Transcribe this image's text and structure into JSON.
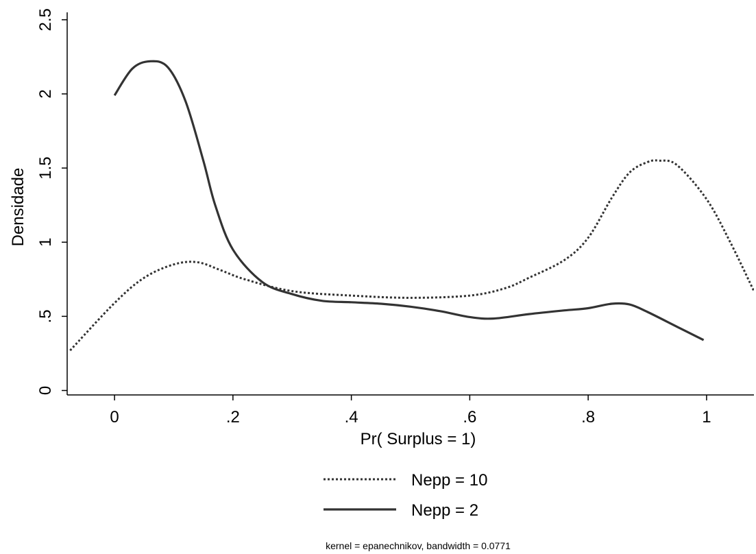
{
  "chart_data": {
    "type": "line",
    "title": "",
    "xlabel": "Pr( Surplus = 1)",
    "ylabel": "Densidade",
    "xlim": [
      -0.08,
      1.08
    ],
    "ylim": [
      -0.03,
      2.55
    ],
    "x_ticks": [
      0,
      0.2,
      0.4,
      0.6,
      0.8,
      1
    ],
    "x_tick_labels": [
      "0",
      ".2",
      ".4",
      ".6",
      ".8",
      "1"
    ],
    "y_ticks": [
      0,
      0.5,
      1,
      1.5,
      2,
      2.5
    ],
    "y_tick_labels": [
      "0",
      ".5",
      "1",
      "1.5",
      "2",
      "2.5"
    ],
    "grid": false,
    "legend_position": "bottom",
    "note": "kernel = epanechnikov, bandwidth = 0.0771",
    "series": [
      {
        "name": "Nepp = 10",
        "style": "dotted",
        "color": "#333333",
        "points": [
          [
            -0.075,
            0.27
          ],
          [
            0.0,
            0.59
          ],
          [
            0.05,
            0.76
          ],
          [
            0.1,
            0.85
          ],
          [
            0.14,
            0.865
          ],
          [
            0.18,
            0.81
          ],
          [
            0.22,
            0.75
          ],
          [
            0.3,
            0.67
          ],
          [
            0.4,
            0.64
          ],
          [
            0.5,
            0.625
          ],
          [
            0.6,
            0.64
          ],
          [
            0.66,
            0.69
          ],
          [
            0.7,
            0.76
          ],
          [
            0.76,
            0.88
          ],
          [
            0.8,
            1.03
          ],
          [
            0.84,
            1.3
          ],
          [
            0.87,
            1.47
          ],
          [
            0.9,
            1.54
          ],
          [
            0.92,
            1.55
          ],
          [
            0.95,
            1.52
          ],
          [
            1.0,
            1.29
          ],
          [
            1.04,
            1.0
          ],
          [
            1.08,
            0.67
          ]
        ]
      },
      {
        "name": "Nepp = 2",
        "style": "solid",
        "color": "#333333",
        "points": [
          [
            0.0,
            1.99
          ],
          [
            0.03,
            2.17
          ],
          [
            0.06,
            2.22
          ],
          [
            0.09,
            2.18
          ],
          [
            0.12,
            1.95
          ],
          [
            0.15,
            1.55
          ],
          [
            0.17,
            1.25
          ],
          [
            0.2,
            0.95
          ],
          [
            0.25,
            0.73
          ],
          [
            0.3,
            0.65
          ],
          [
            0.35,
            0.605
          ],
          [
            0.4,
            0.595
          ],
          [
            0.45,
            0.585
          ],
          [
            0.5,
            0.565
          ],
          [
            0.55,
            0.535
          ],
          [
            0.6,
            0.495
          ],
          [
            0.64,
            0.485
          ],
          [
            0.7,
            0.515
          ],
          [
            0.76,
            0.54
          ],
          [
            0.8,
            0.555
          ],
          [
            0.84,
            0.585
          ],
          [
            0.87,
            0.58
          ],
          [
            0.9,
            0.53
          ],
          [
            0.95,
            0.43
          ],
          [
            0.995,
            0.34
          ]
        ]
      }
    ]
  }
}
